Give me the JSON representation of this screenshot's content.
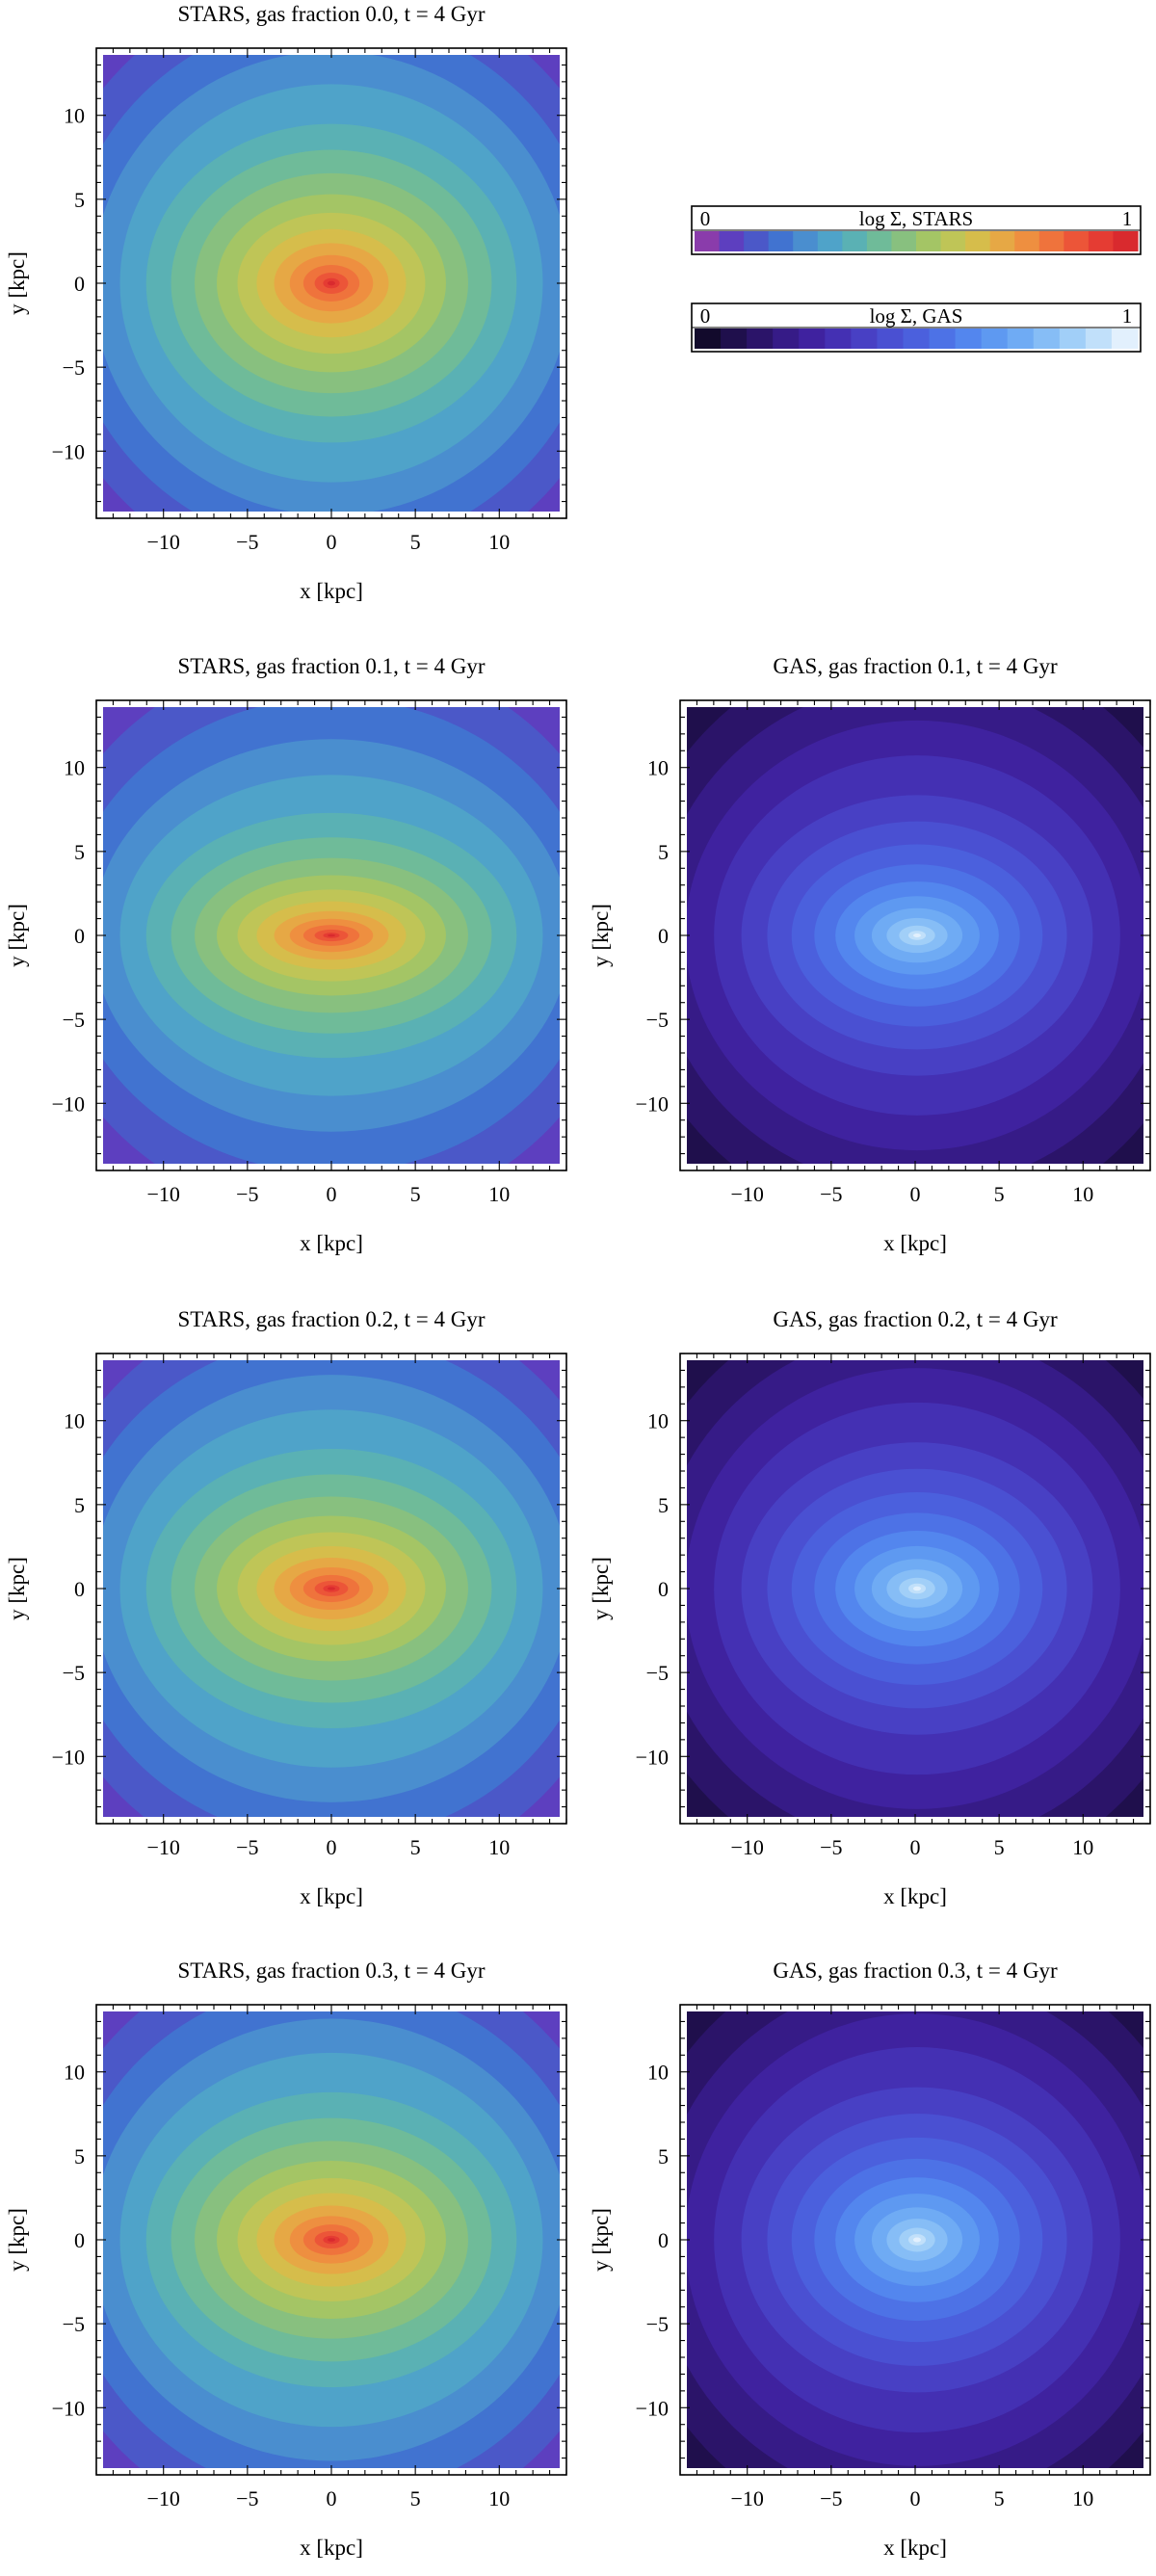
{
  "colorbars": [
    {
      "label": "log Σ, STARS",
      "min": "0",
      "max": "1",
      "colors": [
        "#8a3cab",
        "#5d3fbf",
        "#4b58c8",
        "#4173d0",
        "#4a8ecf",
        "#4fa3c9",
        "#5ab1b4",
        "#6fbb99",
        "#88c07f",
        "#a4c565",
        "#bfc557",
        "#d6bd4b",
        "#e6a845",
        "#ee8f40",
        "#ef733c",
        "#ec5538",
        "#e53c33",
        "#d92a2e"
      ]
    },
    {
      "label": "log Σ, GAS",
      "min": "0",
      "max": "1",
      "colors": [
        "#120a2c",
        "#1f0f4c",
        "#2b1469",
        "#361b87",
        "#3f229f",
        "#4430b3",
        "#4840c4",
        "#4a50d2",
        "#4b60dd",
        "#4d72e6",
        "#5386ee",
        "#5e99f1",
        "#6fabf4",
        "#86bdf6",
        "#a1cff8",
        "#c1e0fa",
        "#e2f0fd"
      ]
    }
  ],
  "chart_data": [
    {
      "type": "heatmap",
      "variant": "stars",
      "title": "STARS, gas fraction 0.0, t = 4 Gyr",
      "xlabel": "x [kpc]",
      "ylabel": "y [kpc]",
      "xlim": [
        -14,
        14
      ],
      "ylim": [
        -14,
        14
      ],
      "xticks": [
        "−10",
        "−5",
        "0",
        "5",
        "10"
      ],
      "yticks": [
        "10",
        "5",
        "0",
        "−5",
        "−10"
      ],
      "core_elongation": 1.7,
      "colorscale": "log Σ, STARS"
    },
    {
      "type": "heatmap",
      "variant": "stars",
      "title": "STARS, gas fraction 0.1, t = 4 Gyr",
      "xlabel": "x [kpc]",
      "ylabel": "y [kpc]",
      "xlim": [
        -14,
        14
      ],
      "ylim": [
        -14,
        14
      ],
      "xticks": [
        "−10",
        "−5",
        "0",
        "5",
        "10"
      ],
      "yticks": [
        "10",
        "5",
        "0",
        "−5",
        "−10"
      ],
      "core_elongation": 3.2,
      "colorscale": "log Σ, STARS"
    },
    {
      "type": "heatmap",
      "variant": "gas",
      "title": "GAS, gas fraction 0.1, t = 4 Gyr",
      "xlabel": "x [kpc]",
      "ylabel": "y [kpc]",
      "xlim": [
        -14,
        14
      ],
      "ylim": [
        -14,
        14
      ],
      "xticks": [
        "−10",
        "−5",
        "0",
        "5",
        "10"
      ],
      "yticks": [
        "10",
        "5",
        "0",
        "−5",
        "−10"
      ],
      "core_elongation": 2.0,
      "colorscale": "log Σ, GAS"
    },
    {
      "type": "heatmap",
      "variant": "stars",
      "title": "STARS, gas fraction 0.2, t = 4 Gyr",
      "xlabel": "x [kpc]",
      "ylabel": "y [kpc]",
      "xlim": [
        -14,
        14
      ],
      "ylim": [
        -14,
        14
      ],
      "xticks": [
        "−10",
        "−5",
        "0",
        "5",
        "10"
      ],
      "yticks": [
        "10",
        "5",
        "0",
        "−5",
        "−10"
      ],
      "core_elongation": 2.4,
      "colorscale": "log Σ, STARS"
    },
    {
      "type": "heatmap",
      "variant": "gas",
      "title": "GAS, gas fraction 0.2, t = 4 Gyr",
      "xlabel": "x [kpc]",
      "ylabel": "y [kpc]",
      "xlim": [
        -14,
        14
      ],
      "ylim": [
        -14,
        14
      ],
      "xticks": [
        "−10",
        "−5",
        "0",
        "5",
        "10"
      ],
      "yticks": [
        "10",
        "5",
        "0",
        "−5",
        "−10"
      ],
      "core_elongation": 1.8,
      "colorscale": "log Σ, GAS"
    },
    {
      "type": "heatmap",
      "variant": "stars",
      "title": "STARS, gas fraction 0.3, t = 4 Gyr",
      "xlabel": "x [kpc]",
      "ylabel": "y [kpc]",
      "xlim": [
        -14,
        14
      ],
      "ylim": [
        -14,
        14
      ],
      "xticks": [
        "−10",
        "−5",
        "0",
        "5",
        "10"
      ],
      "yticks": [
        "10",
        "5",
        "0",
        "−5",
        "−10"
      ],
      "core_elongation": 2.1,
      "colorscale": "log Σ, STARS"
    },
    {
      "type": "heatmap",
      "variant": "gas",
      "title": "GAS, gas fraction 0.3, t = 4 Gyr",
      "xlabel": "x [kpc]",
      "ylabel": "y [kpc]",
      "xlim": [
        -14,
        14
      ],
      "ylim": [
        -14,
        14
      ],
      "xticks": [
        "−10",
        "−5",
        "0",
        "5",
        "10"
      ],
      "yticks": [
        "10",
        "5",
        "0",
        "−5",
        "−10"
      ],
      "core_elongation": 1.6,
      "colorscale": "log Σ, GAS"
    }
  ]
}
